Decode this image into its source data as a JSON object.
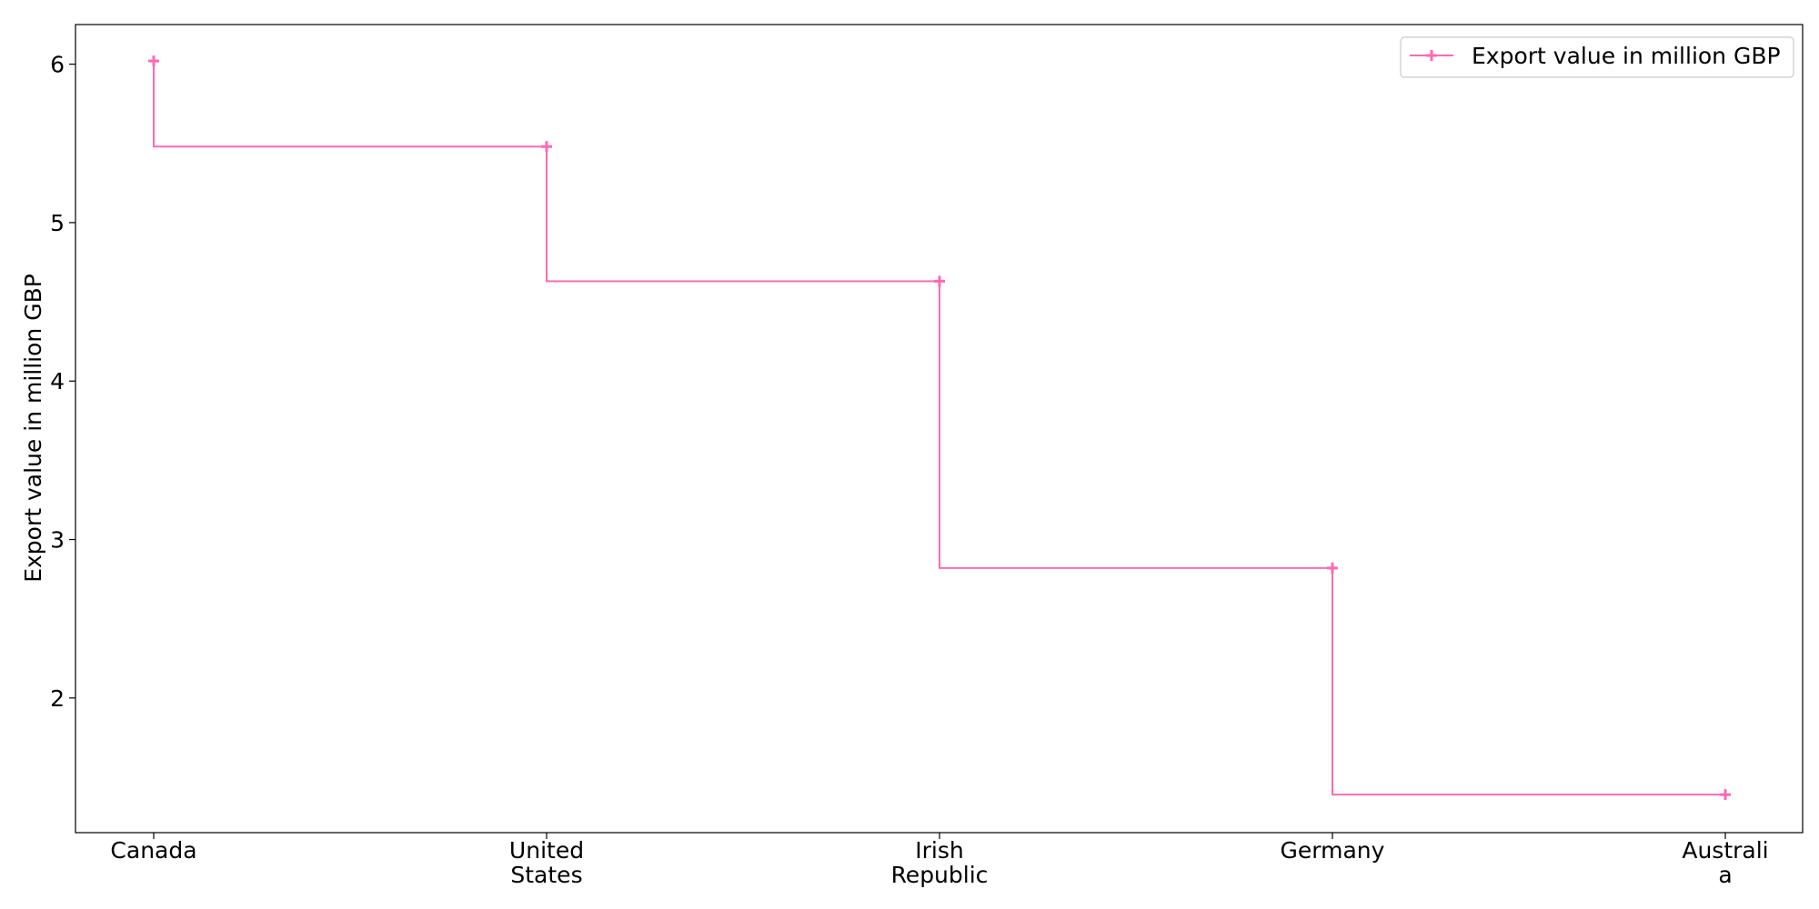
{
  "chart_data": {
    "type": "line",
    "drawstyle": "steps-pre",
    "categories": [
      [
        "Canada"
      ],
      [
        "United",
        "States"
      ],
      [
        "Irish",
        "Republic"
      ],
      [
        "Germany"
      ],
      [
        "Australi",
        "a"
      ]
    ],
    "series": [
      {
        "name": "Export value in million GBP",
        "values": [
          6.02,
          5.48,
          4.63,
          2.82,
          1.39
        ],
        "color": "#ff69b4",
        "marker": "+"
      }
    ],
    "title": "",
    "xlabel": "",
    "ylabel": "Export value in million GBP",
    "ylim": [
      1.15,
      6.25
    ],
    "yticks": [
      2,
      3,
      4,
      5,
      6
    ],
    "legend": {
      "position": "top-right",
      "label": "Export value in million GBP"
    }
  }
}
